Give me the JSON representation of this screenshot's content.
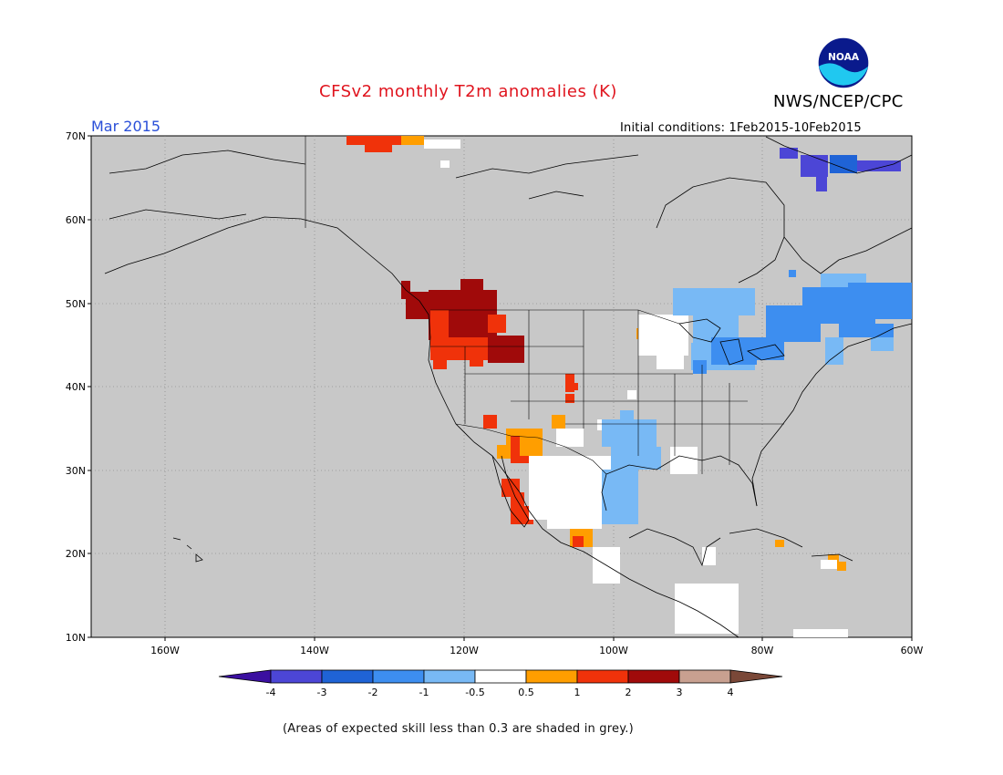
{
  "header": {
    "title": "CFSv2 monthly T2m anomalies (K)",
    "agency": "NWS/NCEP/CPC",
    "month": "Mar 2015",
    "initial_conditions": "Initial conditions: 1Feb2015-10Feb2015",
    "logo_text": "NOAA"
  },
  "map": {
    "lat_labels": [
      "70N",
      "60N",
      "50N",
      "40N",
      "30N",
      "20N",
      "10N"
    ],
    "lon_labels": [
      "160W",
      "140W",
      "120W",
      "100W",
      "80W",
      "60W"
    ],
    "background_color": "#c8c8c8"
  },
  "colorbar": {
    "labels": [
      "-4",
      "-3",
      "-2",
      "-1",
      "-0.5",
      "0.5",
      "1",
      "2",
      "3",
      "4"
    ],
    "colors": [
      "#3b0fa0",
      "#4c46d6",
      "#1f63d6",
      "#3d8ef0",
      "#78b9f5",
      "#ffffff",
      "#ff9e00",
      "#f0320a",
      "#a00a0a",
      "#c8a090",
      "#7a4838"
    ]
  },
  "footnote": "(Areas of expected skill less than 0.3 are shaded in grey.)"
}
